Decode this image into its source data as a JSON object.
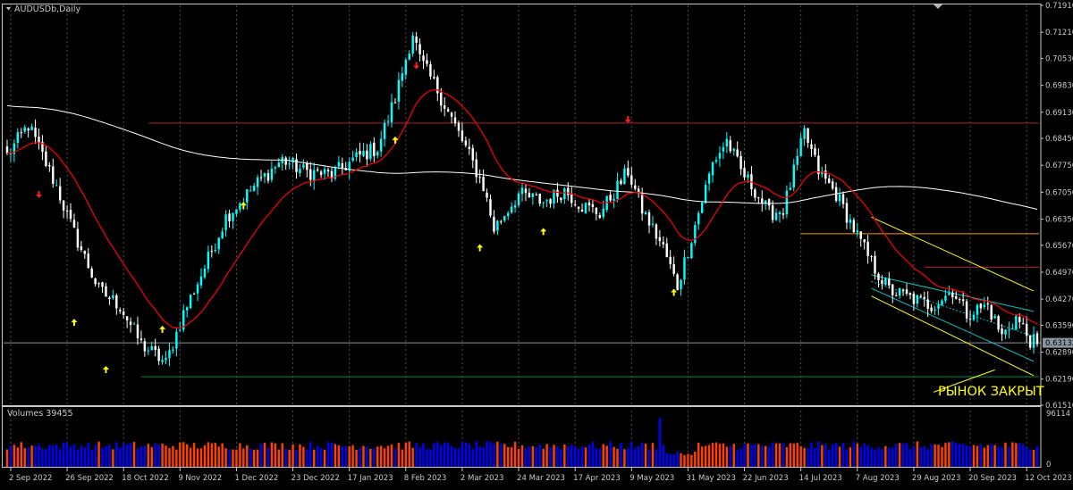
{
  "window": {
    "symbol_title": "AUDUSDb,Daily",
    "closed_note": "РЫНОК ЗАКРЫТ",
    "volumes_title": "Volumes 39455",
    "volume_scale_max": "96114",
    "volume_scale_min": "0"
  },
  "colors": {
    "background": "#000000",
    "grid": "#4f4f4f",
    "frame": "#c8c8c8",
    "bull_candle": "#00ffff",
    "bear_candle": "#ffffff",
    "fast_ma": "#ff0000",
    "slow_ma": "#ffffff",
    "resistance_line": "#b41e32",
    "support_line": "#ff9600",
    "channel_outer": "#ffff00",
    "channel_inner": "#00c8c8",
    "bottom_line": "#008c3c",
    "up_arrow": "#ffff00",
    "down_arrow": "#ff2020",
    "volume_up": "#ff4000",
    "volume_down": "#0000ff",
    "current_price_line": "#8c96a0"
  },
  "chart_data": {
    "type": "candlestick",
    "title": "AUDUSDb,Daily",
    "ylim": [
      0.6151,
      0.7191
    ],
    "y_ticks": [
      "0.71910",
      "0.71210",
      "0.70530",
      "0.69830",
      "0.69130",
      "0.68450",
      "0.67750",
      "0.67050",
      "0.66350",
      "0.65670",
      "0.64970",
      "0.64270",
      "0.63590",
      "0.62890",
      "0.62190",
      "0.61510"
    ],
    "current_price": "0.63132",
    "x_ticks": [
      "2 Sep 2022",
      "26 Sep 2022",
      "18 Oct 2022",
      "9 Nov 2022",
      "1 Dec 2022",
      "23 Dec 2022",
      "17 Jan 2023",
      "8 Feb 2023",
      "2 Mar 2023",
      "24 Mar 2023",
      "17 Apr 2023",
      "9 May 2023",
      "31 May 2023",
      "22 Jun 2023",
      "14 Jul 2023",
      "7 Aug 2023",
      "29 Aug 2023",
      "20 Sep 2023",
      "12 Oct 2023"
    ],
    "candles_per_tick": 16,
    "trading_days": 293,
    "price_path": [
      [
        0,
        0.68
      ],
      [
        6,
        0.688
      ],
      [
        14,
        0.672
      ],
      [
        18,
        0.662
      ],
      [
        26,
        0.645
      ],
      [
        32,
        0.641
      ],
      [
        38,
        0.631
      ],
      [
        45,
        0.626
      ],
      [
        50,
        0.639
      ],
      [
        56,
        0.651
      ],
      [
        62,
        0.664
      ],
      [
        70,
        0.672
      ],
      [
        78,
        0.679
      ],
      [
        84,
        0.676
      ],
      [
        92,
        0.675
      ],
      [
        100,
        0.68
      ],
      [
        105,
        0.682
      ],
      [
        110,
        0.695
      ],
      [
        115,
        0.712
      ],
      [
        117,
        0.705
      ],
      [
        122,
        0.697
      ],
      [
        130,
        0.682
      ],
      [
        135,
        0.672
      ],
      [
        138,
        0.661
      ],
      [
        145,
        0.67
      ],
      [
        152,
        0.668
      ],
      [
        158,
        0.671
      ],
      [
        163,
        0.667
      ],
      [
        168,
        0.665
      ],
      [
        176,
        0.676
      ],
      [
        180,
        0.666
      ],
      [
        186,
        0.656
      ],
      [
        190,
        0.646
      ],
      [
        195,
        0.662
      ],
      [
        200,
        0.678
      ],
      [
        204,
        0.684
      ],
      [
        208,
        0.676
      ],
      [
        212,
        0.671
      ],
      [
        216,
        0.665
      ],
      [
        220,
        0.666
      ],
      [
        224,
        0.679
      ],
      [
        226,
        0.686
      ],
      [
        230,
        0.676
      ],
      [
        235,
        0.67
      ],
      [
        240,
        0.661
      ],
      [
        245,
        0.652
      ],
      [
        250,
        0.645
      ],
      [
        256,
        0.643
      ],
      [
        262,
        0.641
      ],
      [
        268,
        0.645
      ],
      [
        272,
        0.639
      ],
      [
        278,
        0.641
      ],
      [
        282,
        0.633
      ],
      [
        286,
        0.638
      ],
      [
        290,
        0.632
      ],
      [
        292,
        0.631
      ]
    ],
    "fast_ma_period": 20,
    "slow_ma_period": 200,
    "horizontal_levels": [
      {
        "name": "resistance-high",
        "price": 0.6885,
        "from_day": 40,
        "to_day": 292,
        "color": "#b41e32"
      },
      {
        "name": "support-mid",
        "price": 0.6597,
        "from_day": 225,
        "to_day": 292,
        "color": "#ff9600"
      },
      {
        "name": "resistance-low",
        "price": 0.651,
        "from_day": 260,
        "to_day": 292,
        "color": "#b41e32"
      },
      {
        "name": "bottom",
        "price": 0.6225,
        "from_day": 38,
        "to_day": 292,
        "color": "#008c3c"
      }
    ],
    "channel": {
      "from_day": 246,
      "to_day": 291,
      "outer": [
        [
          0.664,
          0.6448
        ],
        [
          0.6435,
          0.6228
        ]
      ],
      "inner": [
        [
          0.649,
          0.6395
        ],
        [
          0.6455,
          0.6265
        ]
      ]
    },
    "up_arrows": [
      [
        19,
        0.6376
      ],
      [
        28,
        0.6253
      ],
      [
        44,
        0.6358
      ],
      [
        67,
        0.668
      ],
      [
        110,
        0.685
      ],
      [
        134,
        0.657
      ],
      [
        152,
        0.6612
      ],
      [
        189,
        0.6454
      ]
    ],
    "down_arrows": [
      [
        9,
        0.669
      ],
      [
        116,
        0.7025
      ],
      [
        176,
        0.6885
      ]
    ],
    "volume_max": 96114
  }
}
